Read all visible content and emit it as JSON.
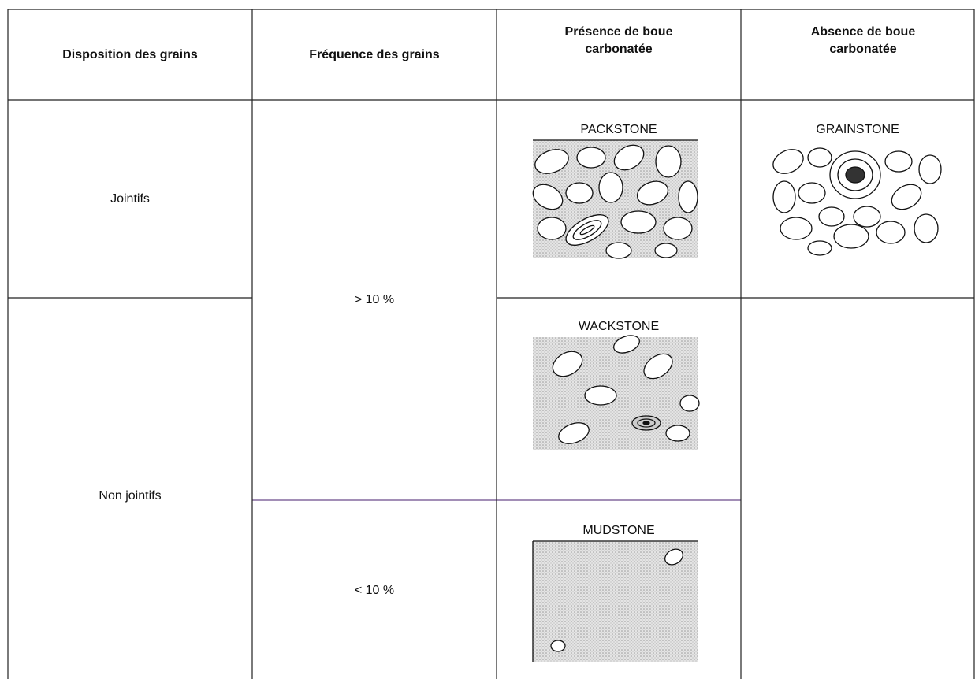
{
  "table": {
    "headers": [
      "Disposition des grains",
      "Fréquence des grains",
      "Présence de boue carbonatée",
      "Absence de boue carbonatée"
    ],
    "dispositions": [
      "Jointifs",
      "Non jointifs"
    ],
    "frequencies": [
      "> 10 %",
      "< 10 %"
    ],
    "textures": [
      "PACKSTONE",
      "GRAINSTONE",
      "WACKSTONE",
      "MUDSTONE"
    ]
  }
}
